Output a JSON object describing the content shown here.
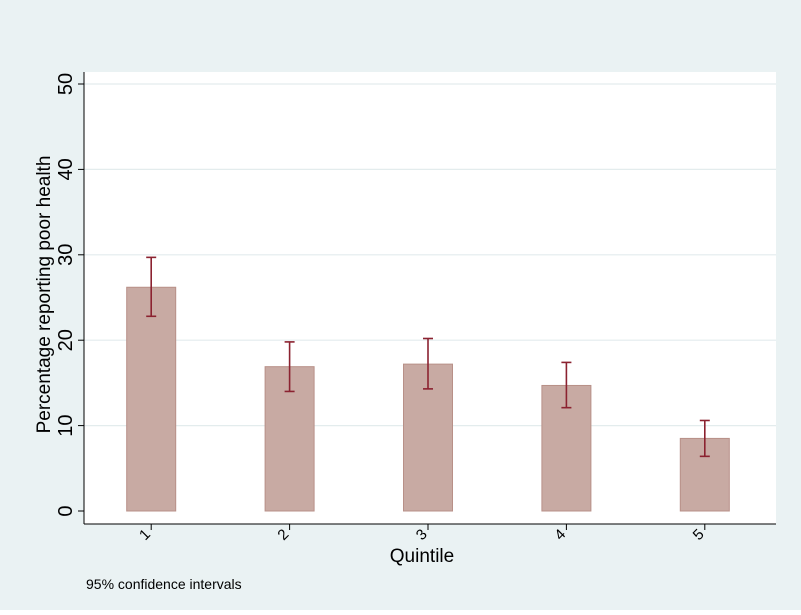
{
  "chart_data": {
    "type": "bar",
    "categories": [
      "1",
      "2",
      "3",
      "4",
      "5"
    ],
    "values": [
      26.2,
      16.9,
      17.2,
      14.7,
      8.5
    ],
    "error_bars": {
      "lower": [
        22.8,
        14.0,
        14.3,
        12.1,
        6.4
      ],
      "upper": [
        29.7,
        19.8,
        20.2,
        17.4,
        10.6
      ]
    },
    "title": "",
    "xlabel": "Quintile",
    "ylabel": "Percentage reporting poor health",
    "ylim": [
      0,
      50
    ],
    "yticks": [
      "0",
      "10",
      "20",
      "30",
      "40",
      "50"
    ],
    "note": "95% confidence intervals",
    "grid": true,
    "legend": "none",
    "colors": {
      "background": "#eaf2f3",
      "plot_background": "#ffffff",
      "bar_fill": "#c8aaa3",
      "bar_stroke": "#b89088",
      "error_bar": "#8b2230",
      "grid": "#e3eced",
      "axis": "#000000"
    }
  }
}
